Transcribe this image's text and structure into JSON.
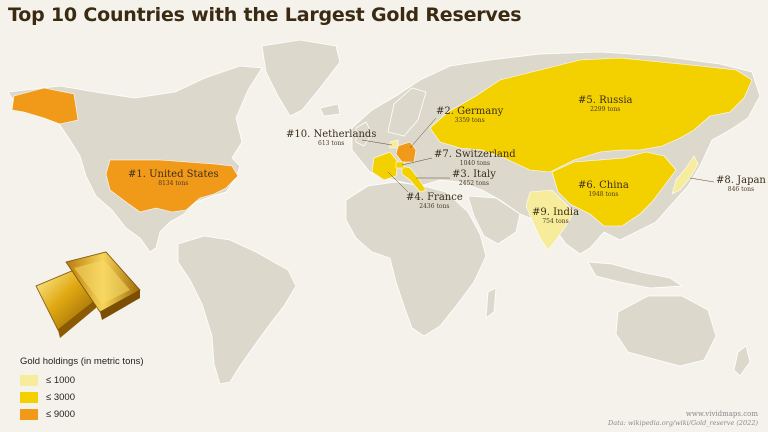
{
  "title": "Top 10 Countries with the Largest Gold Reserves",
  "colors": {
    "low": "#f7ec9b",
    "mid": "#f3d000",
    "high": "#f19a1a",
    "land": "#dcd8cb",
    "ocean": "#f4f2eb"
  },
  "countries": [
    {
      "rank_label": "#1. United States",
      "tons": "8134 tons",
      "reserve": 8134,
      "bucket": "high"
    },
    {
      "rank_label": "#2. Germany",
      "tons": "3359 tons",
      "reserve": 3359,
      "bucket": "high"
    },
    {
      "rank_label": "#3. Italy",
      "tons": "2452 tons",
      "reserve": 2452,
      "bucket": "mid"
    },
    {
      "rank_label": "#4. France",
      "tons": "2436 tons",
      "reserve": 2436,
      "bucket": "mid"
    },
    {
      "rank_label": "#5. Russia",
      "tons": "2299 tons",
      "reserve": 2299,
      "bucket": "mid"
    },
    {
      "rank_label": "#6. China",
      "tons": "1948 tons",
      "reserve": 1948,
      "bucket": "mid"
    },
    {
      "rank_label": "#7. Switzerland",
      "tons": "1040 tons",
      "reserve": 1040,
      "bucket": "mid"
    },
    {
      "rank_label": "#8. Japan",
      "tons": "846 tons",
      "reserve": 846,
      "bucket": "low"
    },
    {
      "rank_label": "#9. India",
      "tons": "754 tons",
      "reserve": 754,
      "bucket": "low"
    },
    {
      "rank_label": "#10. Netherlands",
      "tons": "613 tons",
      "reserve": 613,
      "bucket": "low"
    }
  ],
  "legend": {
    "title": "Gold holdings (in metric tons)",
    "items": [
      "≤ 1000",
      "≤ 3000",
      "≤ 9000"
    ]
  },
  "credit": {
    "site": "www.vividmaps.com",
    "source": "Data: wikipedia.org/wiki/Gold_reserve (2022)"
  }
}
